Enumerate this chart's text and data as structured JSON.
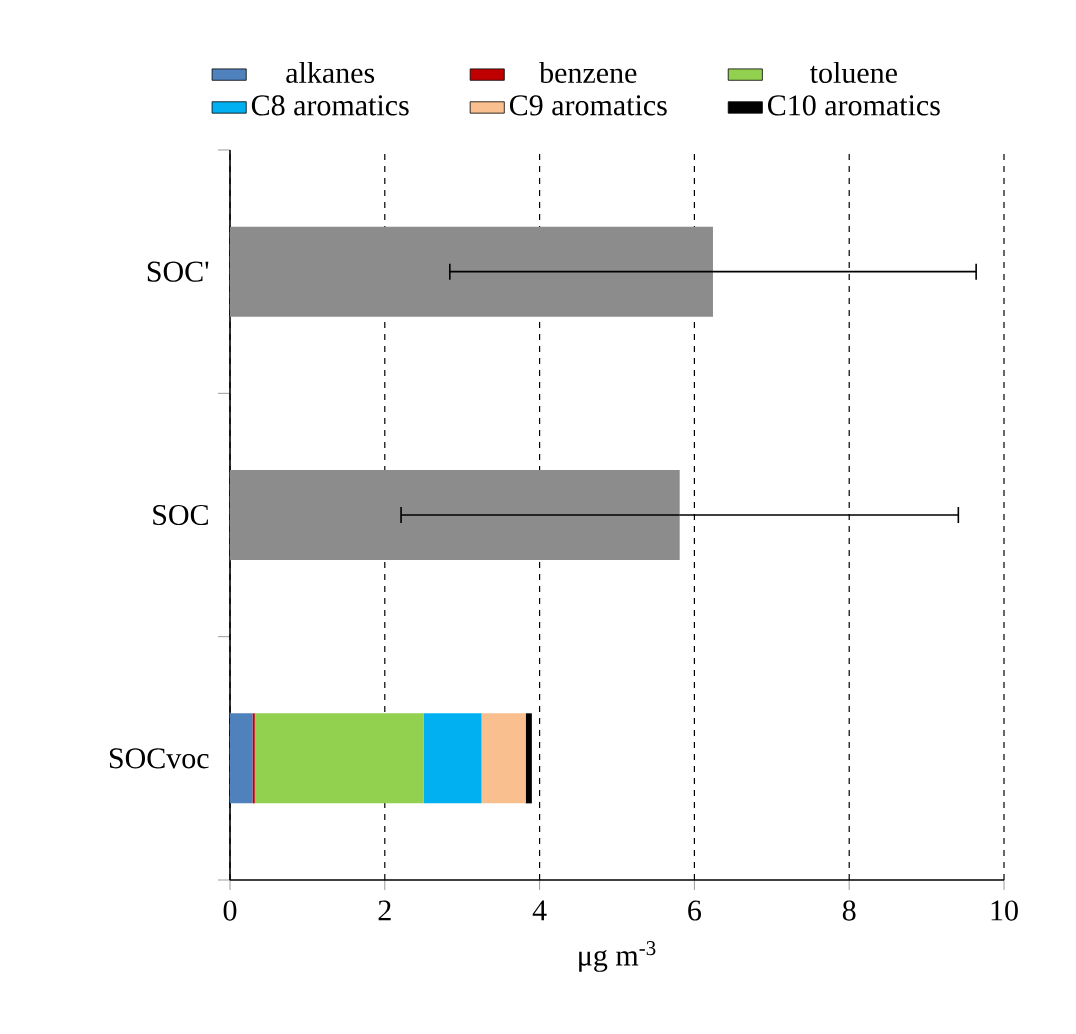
{
  "chart_data": {
    "type": "bar",
    "orientation": "horizontal",
    "stacked": true,
    "categories": [
      "SOC'",
      "SOC",
      "SOCvoc"
    ],
    "xlabel": "μg m$^{-3}$",
    "xlim": [
      0,
      10
    ],
    "xticks": [
      0,
      2,
      4,
      6,
      8,
      10
    ],
    "grid": "x",
    "legend": "top",
    "series": [
      {
        "color": "#8c8c8c",
        "values": [
          6.24,
          5.81,
          null
        ],
        "errors": [
          3.4,
          3.6,
          null
        ]
      },
      {
        "name": "alkanes",
        "color": "#4f81bd",
        "values": [
          null,
          null,
          0.29
        ]
      },
      {
        "name": "benzene",
        "color": "#c00000",
        "values": [
          null,
          null,
          0.03
        ]
      },
      {
        "name": "toluene",
        "color": "#92d050",
        "values": [
          null,
          null,
          2.18
        ]
      },
      {
        "name": "C8 aromatics",
        "color": "#00b0f0",
        "values": [
          null,
          null,
          0.75
        ]
      },
      {
        "name": "C9 aromatics",
        "color": "#fabf8f",
        "values": [
          null,
          null,
          0.57
        ]
      },
      {
        "name": "C10 aromatics",
        "color": "#000000",
        "values": [
          null,
          null,
          0.08
        ]
      }
    ]
  }
}
